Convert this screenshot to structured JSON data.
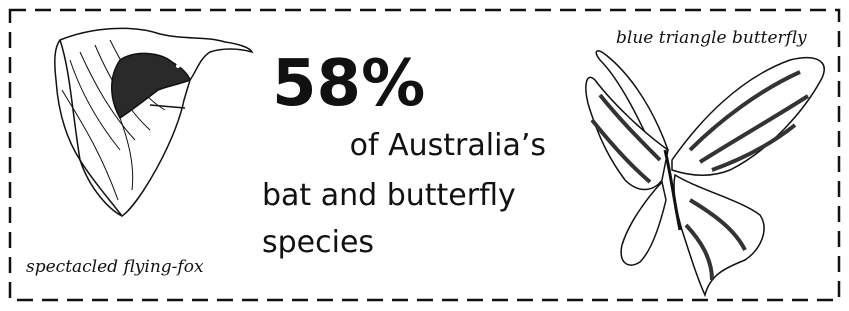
{
  "stat": "58%",
  "description": {
    "lines": [
      "of Australia’s",
      "bat and butterfly",
      "species"
    ]
  },
  "images": [
    {
      "caption": "spectacled flying-fox"
    },
    {
      "caption": "blue triangle butterfly"
    }
  ]
}
